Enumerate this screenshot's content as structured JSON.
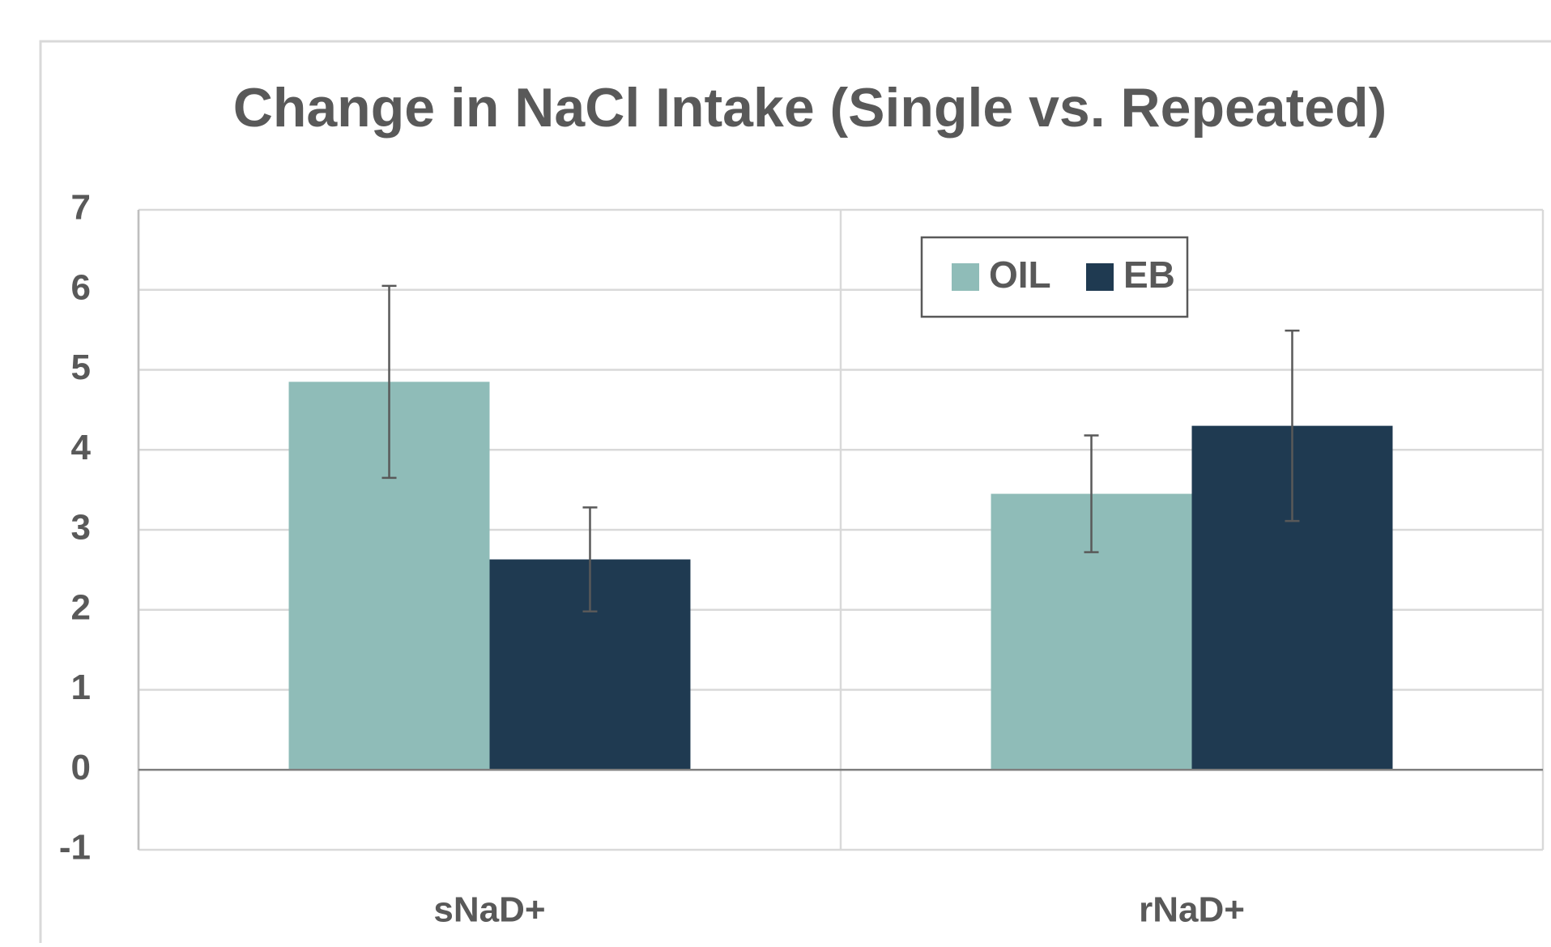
{
  "chart_data": {
    "type": "bar",
    "title": "Change in NaCl Intake (Single vs. Repeated)",
    "categories": [
      "sNaD+",
      "rNaD+"
    ],
    "series": [
      {
        "name": "OIL",
        "color": "#8fbcb8",
        "values": [
          4.85,
          3.45
        ],
        "errors": [
          1.2,
          0.73
        ]
      },
      {
        "name": "EB",
        "color": "#1f3a51",
        "values": [
          2.63,
          4.3
        ],
        "errors": [
          0.65,
          1.19
        ]
      }
    ],
    "ylim": [
      -1,
      7
    ],
    "yticks": [
      -1,
      0,
      1,
      2,
      3,
      4,
      5,
      6,
      7
    ],
    "grid": true,
    "legend": "top-center"
  }
}
